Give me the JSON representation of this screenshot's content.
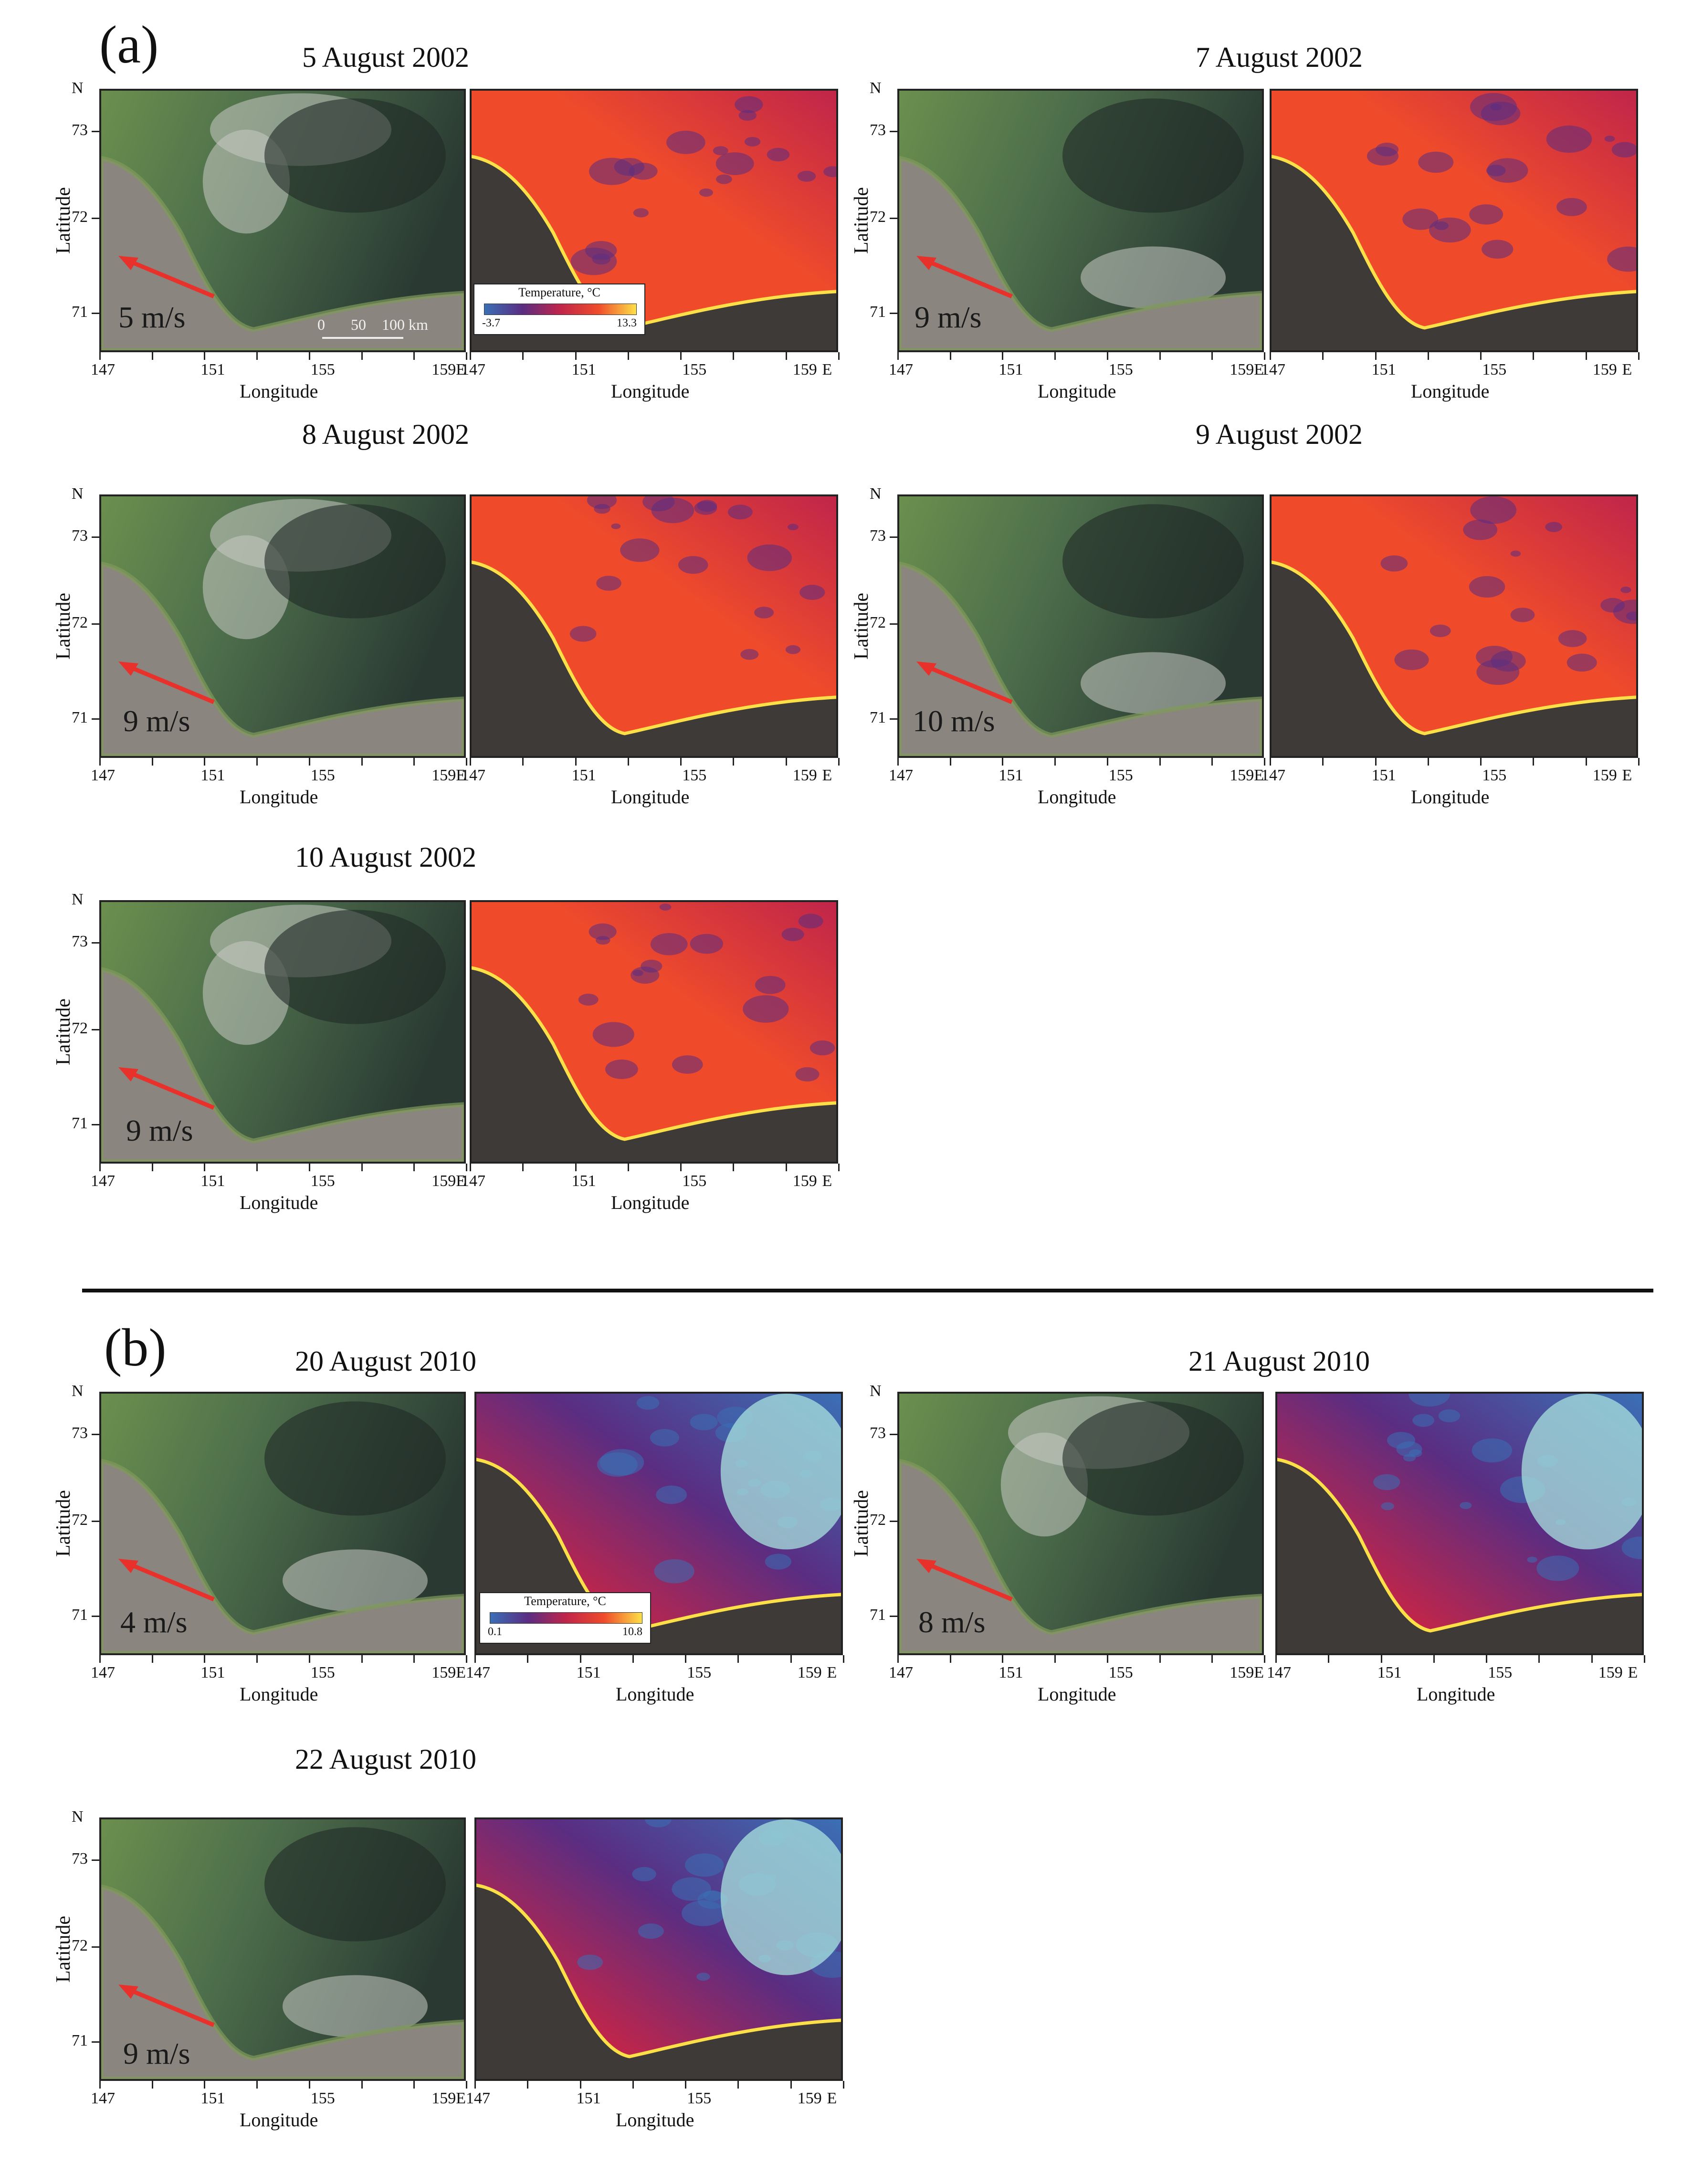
{
  "sections": [
    {
      "label": "(a)",
      "legend": {
        "title": "Temperature, °C",
        "min": "-3.7",
        "max": "13.3"
      }
    },
    {
      "label": "(b)",
      "legend": {
        "title": "Temperature, °C",
        "min": "0.1",
        "max": "10.8"
      }
    }
  ],
  "axis": {
    "lon_ticks": [
      "147",
      "151",
      "155",
      "159E"
    ],
    "lon_ticks_sst": [
      "147",
      "151",
      "155",
      "159",
      "E"
    ],
    "lat_ticks": [
      "73",
      "72",
      "71"
    ],
    "north": "N",
    "xlabel": "Longitude",
    "ylabel": "Latitude"
  },
  "scale_bar": {
    "labels": [
      "0",
      "50",
      "100 km"
    ]
  },
  "panels": [
    {
      "date": "5 August 2002",
      "wind": "5 m/s"
    },
    {
      "date": "7 August 2002",
      "wind": "9 m/s"
    },
    {
      "date": "8 August 2002",
      "wind": "9 m/s"
    },
    {
      "date": "9 August 2002",
      "wind": "10 m/s"
    },
    {
      "date": "10 August 2002",
      "wind": "9 m/s"
    },
    {
      "date": "20 August 2010",
      "wind": "4 m/s"
    },
    {
      "date": "21 August 2010",
      "wind": "8 m/s"
    },
    {
      "date": "22 August 2010",
      "wind": "9 m/s"
    }
  ],
  "colors": {
    "land": "#3d3a37",
    "rgb_sea_dark": "#2a3a33",
    "rgb_sea_green": "#6b8f4e",
    "wind_arrow": "#e8312a",
    "sst_palette": [
      "#3b6fb5",
      "#5a2d82",
      "#c0254a",
      "#ef4b2b",
      "#fde047"
    ]
  }
}
